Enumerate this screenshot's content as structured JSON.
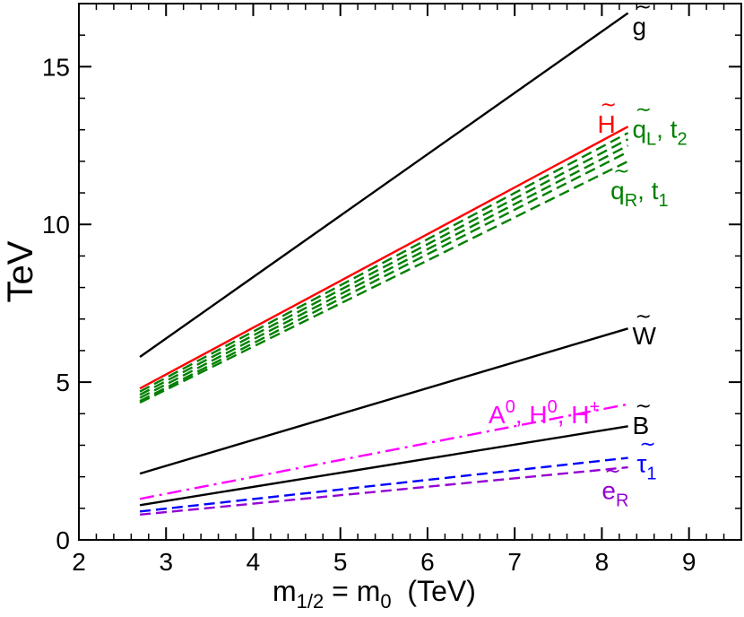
{
  "chart_data": {
    "type": "line",
    "xlabel": {
      "main": "m",
      "sub1": "1/2",
      "mid": " = m",
      "sub2": "0",
      "tail": "  (TeV)"
    },
    "ylabel": "TeV",
    "xlim": [
      2,
      9.6
    ],
    "ylim": [
      0,
      17
    ],
    "x_major_ticks": [
      2,
      3,
      4,
      5,
      6,
      7,
      8,
      9
    ],
    "y_major_ticks": [
      0,
      5,
      10,
      15
    ],
    "x_minor_step": 0.2,
    "y_minor_step": 1,
    "series": [
      {
        "name": "gluino",
        "color": "#000000",
        "style": "solid",
        "x": [
          2.7,
          8.3
        ],
        "y": [
          5.8,
          16.7
        ]
      },
      {
        "name": "higgsino",
        "color": "#ff0000",
        "style": "solid",
        "x": [
          2.7,
          8.3
        ],
        "y": [
          4.8,
          13.1
        ]
      },
      {
        "name": "squark-1",
        "color": "#008000",
        "style": "dashed",
        "x": [
          2.7,
          8.3
        ],
        "y": [
          4.7,
          12.9
        ]
      },
      {
        "name": "squark-2",
        "color": "#008000",
        "style": "dashed",
        "x": [
          2.7,
          8.3
        ],
        "y": [
          4.6,
          12.7
        ]
      },
      {
        "name": "squark-3",
        "color": "#008000",
        "style": "dashed",
        "x": [
          2.7,
          8.3
        ],
        "y": [
          4.5,
          12.5
        ]
      },
      {
        "name": "squark-4",
        "color": "#008000",
        "style": "dashed",
        "x": [
          2.7,
          8.3
        ],
        "y": [
          4.4,
          12.3
        ]
      },
      {
        "name": "squark-5",
        "color": "#008000",
        "style": "dashed",
        "x": [
          2.7,
          8.3
        ],
        "y": [
          4.35,
          12.0
        ]
      },
      {
        "name": "wino",
        "color": "#000000",
        "style": "solid",
        "x": [
          2.7,
          8.3
        ],
        "y": [
          2.1,
          6.7
        ]
      },
      {
        "name": "heavy-higgs",
        "color": "#ff00ff",
        "style": "dashdot",
        "x": [
          2.7,
          8.3
        ],
        "y": [
          1.3,
          4.3
        ]
      },
      {
        "name": "bino",
        "color": "#000000",
        "style": "solid",
        "x": [
          2.7,
          8.3
        ],
        "y": [
          1.1,
          3.6
        ]
      },
      {
        "name": "stau-1",
        "color": "#0000ff",
        "style": "dashed",
        "x": [
          2.7,
          8.3
        ],
        "y": [
          0.9,
          2.6
        ]
      },
      {
        "name": "selectron-R",
        "color": "#9400d3",
        "style": "dashed",
        "x": [
          2.7,
          8.3
        ],
        "y": [
          0.8,
          2.3
        ]
      }
    ],
    "annotations": {
      "gluino": {
        "text": "g",
        "color": "#000000",
        "x": 8.35,
        "y": 16.0
      },
      "higgsino": {
        "text": "H",
        "color": "#ff0000",
        "x": 7.95,
        "y": 12.9
      },
      "squark_L": {
        "text": "q",
        "sub": "L",
        "sep": ", ",
        "text2": "t",
        "sub2": "2",
        "color": "#008000",
        "x": 8.35,
        "y": 12.75
      },
      "squark_R": {
        "text": "q",
        "sub": "R",
        "sep": ", ",
        "text2": "t",
        "sub2": "1",
        "color": "#008000",
        "x": 8.1,
        "y": 10.8
      },
      "wino": {
        "text": "W",
        "color": "#000000",
        "x": 8.35,
        "y": 6.2
      },
      "heavy_higgs": {
        "text": "A",
        "sup": "0",
        "sep": ", ",
        "text2": "H",
        "sup2": "0",
        "sep2": ", ",
        "text3": "H",
        "sup3": "+",
        "color": "#ff00ff",
        "x": 6.7,
        "y": 3.7
      },
      "bino": {
        "text": "B",
        "color": "#000000",
        "x": 8.35,
        "y": 3.35
      },
      "stau": {
        "text": "τ",
        "sub": "1",
        "color": "#0000ff",
        "x": 8.4,
        "y": 2.15
      },
      "selectron": {
        "text": "e",
        "sub": "R",
        "color": "#9400d3",
        "x": 8.0,
        "y": 1.3
      }
    }
  }
}
